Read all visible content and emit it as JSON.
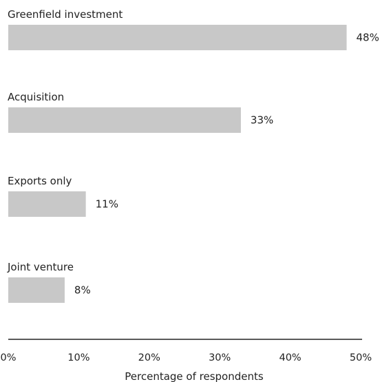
{
  "chart_data": {
    "type": "bar",
    "orientation": "horizontal",
    "categories": [
      "Greenfield investment",
      "Acquisition",
      "Exports only",
      "Joint venture"
    ],
    "values": [
      48,
      33,
      11,
      8
    ],
    "value_labels": [
      "48%",
      "33%",
      "11%",
      "8%"
    ],
    "xlabel": "Percentage of respondents",
    "xlim": [
      0,
      50
    ],
    "xticks": [
      0,
      10,
      20,
      30,
      40,
      50
    ],
    "xtick_labels": [
      "0%",
      "10%",
      "20%",
      "30%",
      "40%",
      "50%"
    ],
    "grid": false,
    "bar_color": "#c8c8c8",
    "axis_color": "#222222"
  }
}
